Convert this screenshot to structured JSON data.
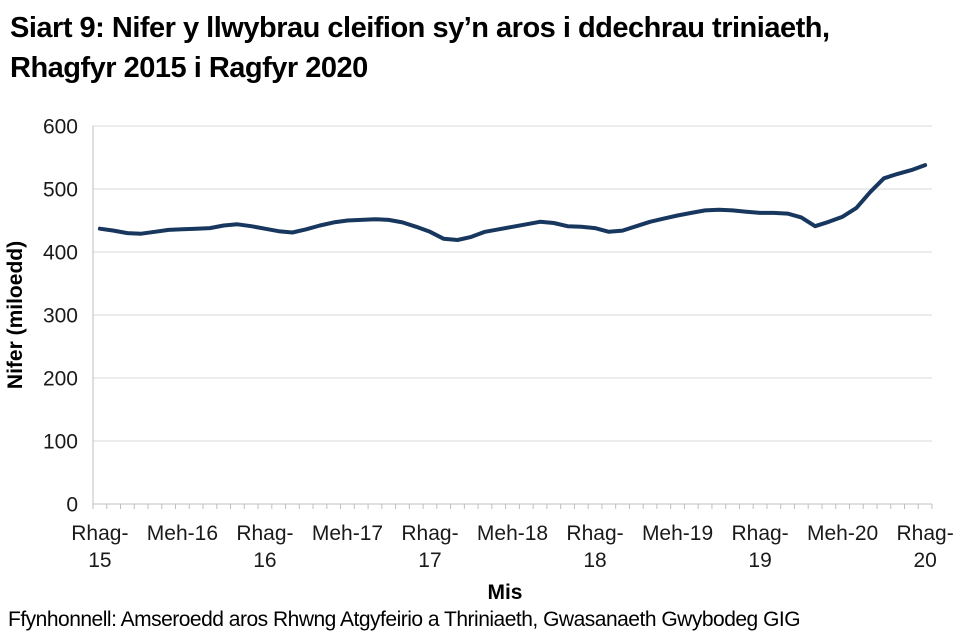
{
  "page": {
    "title": "Siart 9: Nifer y llwybrau cleifion sy’n aros i ddechrau triniaeth, Rhagfyr 2015 i Ragfyr 2020",
    "source": "Ffynhonnell: Amseroedd aros Rhwng Atgyfeirio a Thriniaeth, Gwasanaeth Gwybodeg GIG"
  },
  "chart_data": {
    "type": "line",
    "title": "Siart 9: Nifer y llwybrau cleifion sy’n aros i ddechrau triniaeth, Rhagfyr 2015 i Ragfyr 2020",
    "xlabel": "Mis",
    "ylabel": "Nifer (miloedd)",
    "ylim": [
      0,
      600
    ],
    "ytick_interval": 100,
    "ytick_labels": [
      "0",
      "100",
      "200",
      "300",
      "400",
      "500",
      "600"
    ],
    "grid": true,
    "legend": "none",
    "line_color": "#17375E",
    "gridline_color": "#D9D9D9",
    "axis_color": "#BFBFBF",
    "label_color": "#1A1A1A",
    "xtick_label_every": 6,
    "x_tick_labels": [
      "Rhag-15",
      "Meh-16",
      "Rhag-16",
      "Meh-17",
      "Rhag-17",
      "Meh-18",
      "Rhag-18",
      "Meh-19",
      "Rhag-19",
      "Meh-20",
      "Rhag-20"
    ],
    "x": [
      "2015-12",
      "2016-01",
      "2016-02",
      "2016-03",
      "2016-04",
      "2016-05",
      "2016-06",
      "2016-07",
      "2016-08",
      "2016-09",
      "2016-10",
      "2016-11",
      "2016-12",
      "2017-01",
      "2017-02",
      "2017-03",
      "2017-04",
      "2017-05",
      "2017-06",
      "2017-07",
      "2017-08",
      "2017-09",
      "2017-10",
      "2017-11",
      "2017-12",
      "2018-01",
      "2018-02",
      "2018-03",
      "2018-04",
      "2018-05",
      "2018-06",
      "2018-07",
      "2018-08",
      "2018-09",
      "2018-10",
      "2018-11",
      "2018-12",
      "2019-01",
      "2019-02",
      "2019-03",
      "2019-04",
      "2019-05",
      "2019-06",
      "2019-07",
      "2019-08",
      "2019-09",
      "2019-10",
      "2019-11",
      "2019-12",
      "2020-01",
      "2020-02",
      "2020-03",
      "2020-04",
      "2020-05",
      "2020-06",
      "2020-07",
      "2020-08",
      "2020-09",
      "2020-10",
      "2020-11",
      "2020-12"
    ],
    "values": [
      437,
      434,
      430,
      429,
      432,
      435,
      436,
      437,
      438,
      442,
      444,
      441,
      437,
      433,
      431,
      436,
      442,
      447,
      450,
      451,
      452,
      451,
      447,
      440,
      432,
      421,
      419,
      424,
      432,
      436,
      440,
      444,
      448,
      446,
      441,
      440,
      438,
      432,
      434,
      441,
      448,
      453,
      458,
      462,
      466,
      467,
      466,
      464,
      462,
      462,
      461,
      455,
      441,
      448,
      456,
      470,
      495,
      517,
      524,
      530,
      538
    ]
  }
}
